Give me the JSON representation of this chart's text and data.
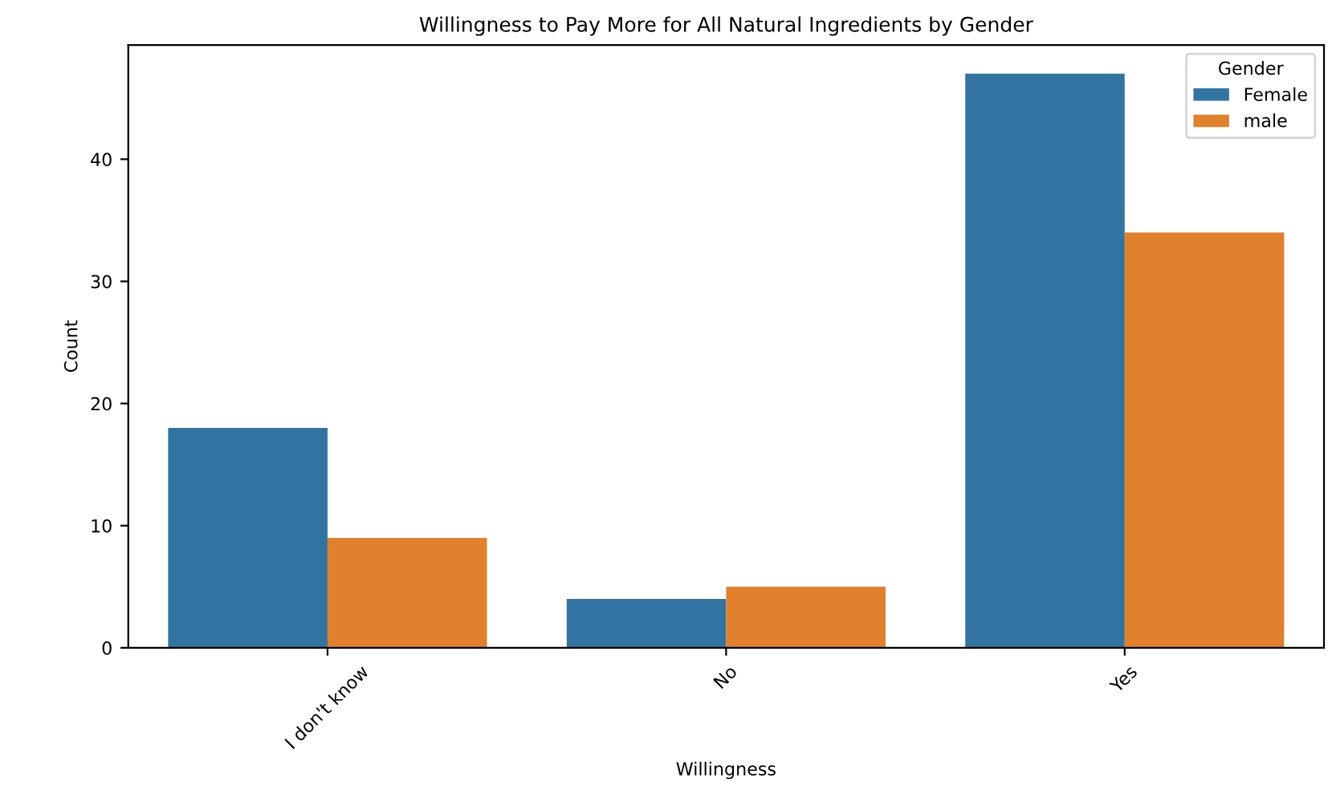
{
  "chart_data": {
    "type": "bar",
    "title": "Willingness to Pay More for All Natural Ingredients by Gender",
    "xlabel": "Willingness",
    "ylabel": "Count",
    "legend_title": "Gender",
    "categories": [
      "I don't know",
      "No",
      "Yes"
    ],
    "series": [
      {
        "name": "Female",
        "color": "#3274a1",
        "values": [
          18,
          4,
          47
        ]
      },
      {
        "name": "male",
        "color": "#e1812c",
        "values": [
          9,
          5,
          34
        ]
      }
    ],
    "ylim": [
      0,
      49.35
    ],
    "yticks": [
      0,
      10,
      20,
      30,
      40
    ],
    "grid": false,
    "legend": "upper right"
  }
}
